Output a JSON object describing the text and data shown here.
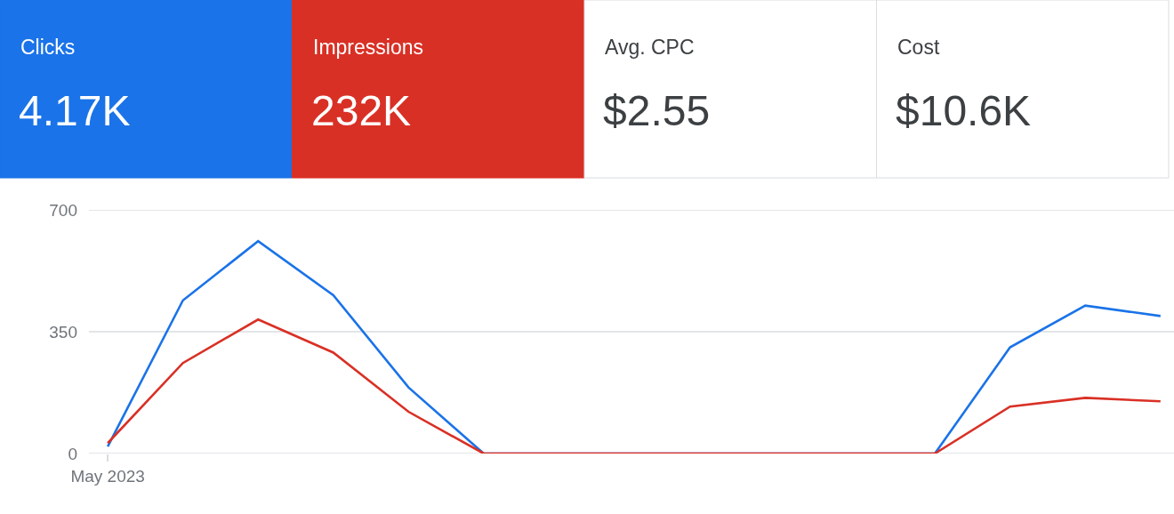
{
  "chart_data": [
    {
      "type": "other",
      "categories": [
        "Clicks",
        "Impressions",
        "Avg. CPC",
        "Cost"
      ],
      "value_labels": [
        "4.17K",
        "232K",
        "$2.55",
        "$10.6K"
      ],
      "colors": [
        "#1a73e8",
        "#d93025",
        "#ffffff",
        "#ffffff"
      ]
    },
    {
      "type": "line",
      "categories": [
        "May 2023",
        null,
        null,
        null,
        null,
        null,
        null,
        null,
        null,
        null,
        null,
        null,
        null,
        null,
        null
      ],
      "series": [
        {
          "color": "#1a73e8",
          "values": [
            20,
            440,
            610,
            455,
            190,
            0,
            0,
            0,
            0,
            0,
            0,
            0,
            305,
            425,
            395
          ]
        },
        {
          "color": "#d93025",
          "values": [
            30,
            260,
            385,
            290,
            120,
            0,
            0,
            0,
            0,
            0,
            0,
            0,
            135,
            160,
            150
          ]
        }
      ],
      "ylim": [
        0,
        700
      ],
      "yticks": [
        0,
        350,
        700
      ],
      "grid": "y"
    }
  ]
}
